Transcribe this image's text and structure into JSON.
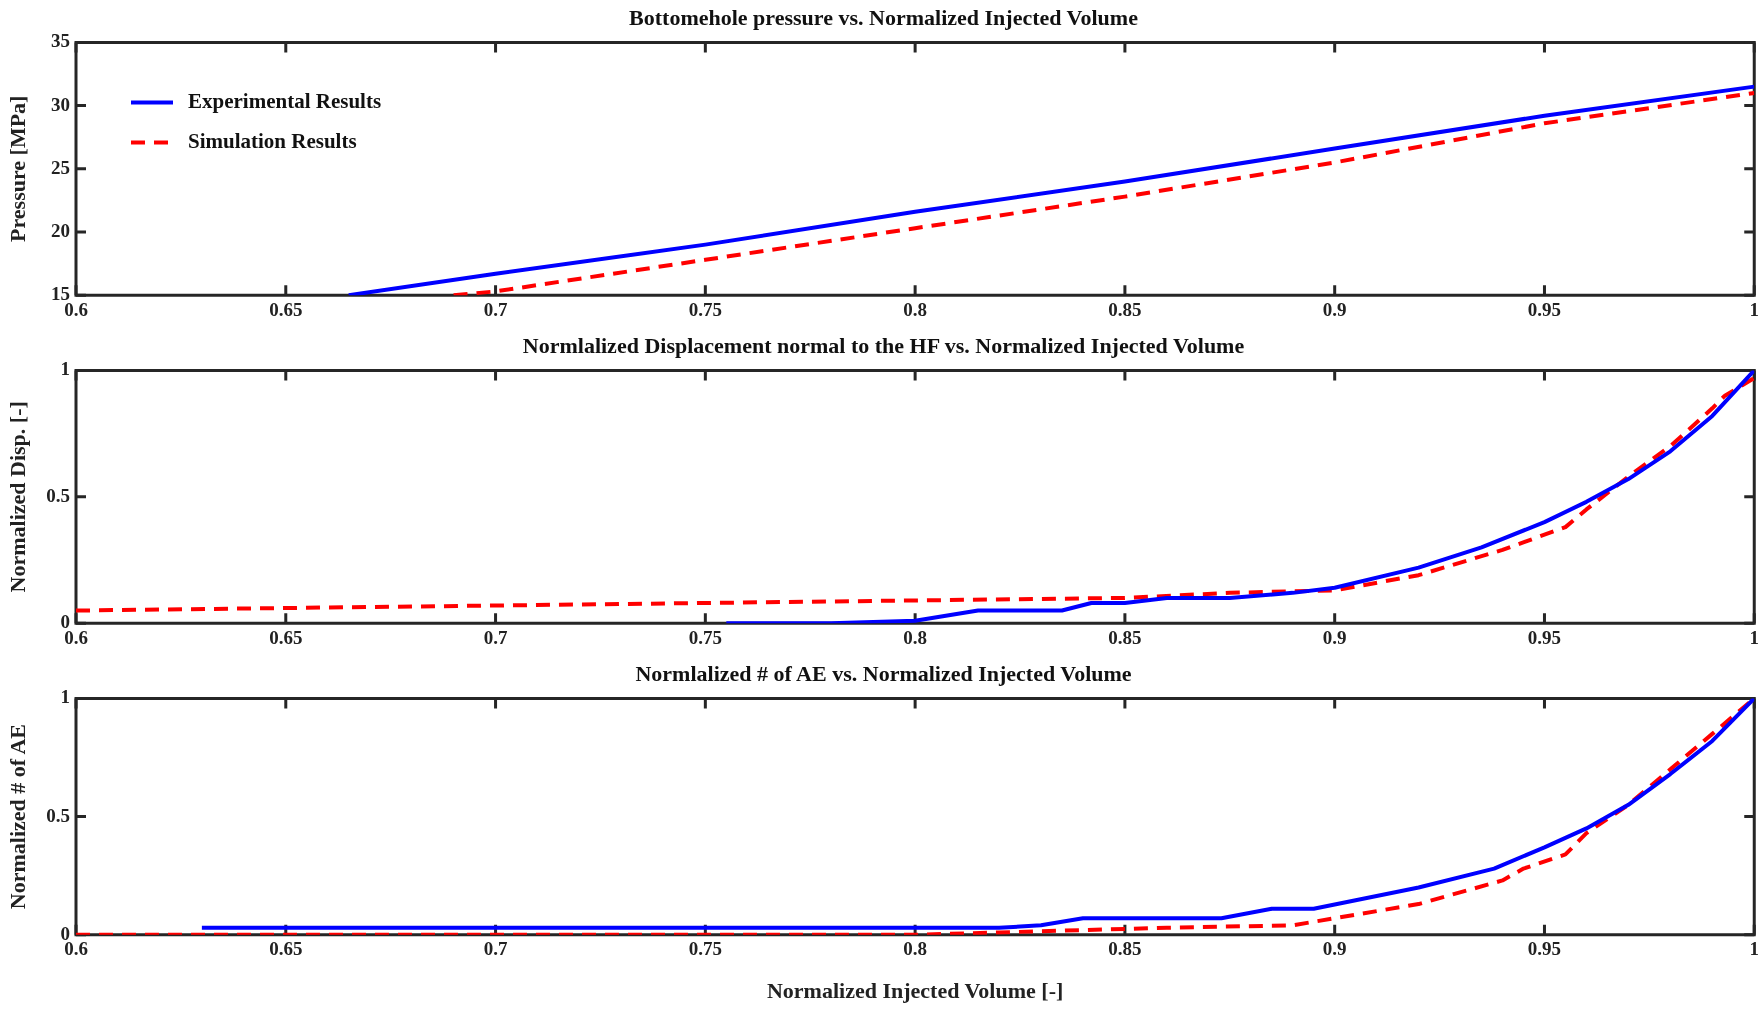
{
  "chart_data": [
    {
      "type": "line",
      "title": "Bottomehole pressure vs. Normalized Injected Volume",
      "ylabel": "Pressure [MPa]",
      "xlim": [
        0.6,
        1
      ],
      "xticks": [
        0.6,
        0.65,
        0.7,
        0.75,
        0.8,
        0.85,
        0.9,
        0.95,
        1
      ],
      "ylim": [
        15,
        35
      ],
      "yticks": [
        15,
        20,
        25,
        30,
        35
      ],
      "legend": "top left",
      "series": [
        {
          "name": "Experimental Results",
          "color": "#0000ff",
          "line_style": "solid",
          "x": [
            0.665,
            0.7,
            0.75,
            0.8,
            0.85,
            0.9,
            0.95,
            1
          ],
          "values": [
            15,
            16.7,
            19,
            21.6,
            24,
            26.6,
            29.2,
            31.5
          ]
        },
        {
          "name": "Simulation Results",
          "color": "#ff0000",
          "line_style": "dashed",
          "x": [
            0.69,
            0.7,
            0.75,
            0.8,
            0.85,
            0.9,
            0.95,
            1
          ],
          "values": [
            15,
            15.3,
            17.8,
            20.3,
            22.8,
            25.5,
            28.6,
            31
          ]
        }
      ]
    },
    {
      "type": "line",
      "title": "Normlalized Displacement normal to the HF vs. Normalized Injected Volume",
      "ylabel": "Normalized Disp. [-]",
      "xlim": [
        0.6,
        1
      ],
      "xticks": [
        0.6,
        0.65,
        0.7,
        0.75,
        0.8,
        0.85,
        0.9,
        0.95,
        1
      ],
      "ylim": [
        0,
        1
      ],
      "yticks": [
        0,
        0.5,
        1
      ],
      "series": [
        {
          "color": "#0000ff",
          "line_style": "solid",
          "x": [
            0.755,
            0.78,
            0.8,
            0.815,
            0.835,
            0.842,
            0.85,
            0.86,
            0.875,
            0.89,
            0.9,
            0.92,
            0.935,
            0.95,
            0.96,
            0.97,
            0.98,
            0.99,
            1
          ],
          "values": [
            0,
            0,
            0.01,
            0.05,
            0.05,
            0.08,
            0.08,
            0.1,
            0.1,
            0.12,
            0.14,
            0.22,
            0.3,
            0.4,
            0.48,
            0.57,
            0.68,
            0.82,
            1
          ]
        },
        {
          "color": "#ff0000",
          "line_style": "dashed",
          "x": [
            0.6,
            0.7,
            0.75,
            0.8,
            0.85,
            0.875,
            0.9,
            0.92,
            0.94,
            0.955,
            0.96,
            0.97,
            0.98,
            0.99,
            0.993,
            1
          ],
          "values": [
            0.05,
            0.07,
            0.08,
            0.09,
            0.1,
            0.12,
            0.13,
            0.19,
            0.29,
            0.38,
            0.45,
            0.58,
            0.7,
            0.85,
            0.9,
            0.97
          ]
        }
      ]
    },
    {
      "type": "line",
      "title": "Normlalized # of AE vs. Normalized Injected Volume",
      "ylabel": "Normalized # of AE",
      "xlabel": "Normalized Injected Volume [-]",
      "xlim": [
        0.6,
        1
      ],
      "xticks": [
        0.6,
        0.65,
        0.7,
        0.75,
        0.8,
        0.85,
        0.9,
        0.95,
        1
      ],
      "ylim": [
        0,
        1
      ],
      "yticks": [
        0,
        0.5,
        1
      ],
      "series": [
        {
          "color": "#0000ff",
          "line_style": "solid",
          "x": [
            0.63,
            0.82,
            0.83,
            0.84,
            0.873,
            0.885,
            0.895,
            0.92,
            0.938,
            0.95,
            0.96,
            0.97,
            0.98,
            0.99,
            1
          ],
          "values": [
            0.03,
            0.03,
            0.04,
            0.07,
            0.07,
            0.11,
            0.11,
            0.2,
            0.28,
            0.37,
            0.45,
            0.55,
            0.68,
            0.82,
            1
          ]
        },
        {
          "color": "#ff0000",
          "line_style": "dashed",
          "x": [
            0.6,
            0.8,
            0.82,
            0.84,
            0.86,
            0.89,
            0.9,
            0.92,
            0.94,
            0.945,
            0.955,
            0.96,
            0.97,
            0.98,
            0.99,
            1
          ],
          "values": [
            0,
            0,
            0.01,
            0.02,
            0.03,
            0.04,
            0.07,
            0.13,
            0.23,
            0.28,
            0.34,
            0.43,
            0.55,
            0.7,
            0.85,
            1
          ]
        }
      ]
    }
  ]
}
